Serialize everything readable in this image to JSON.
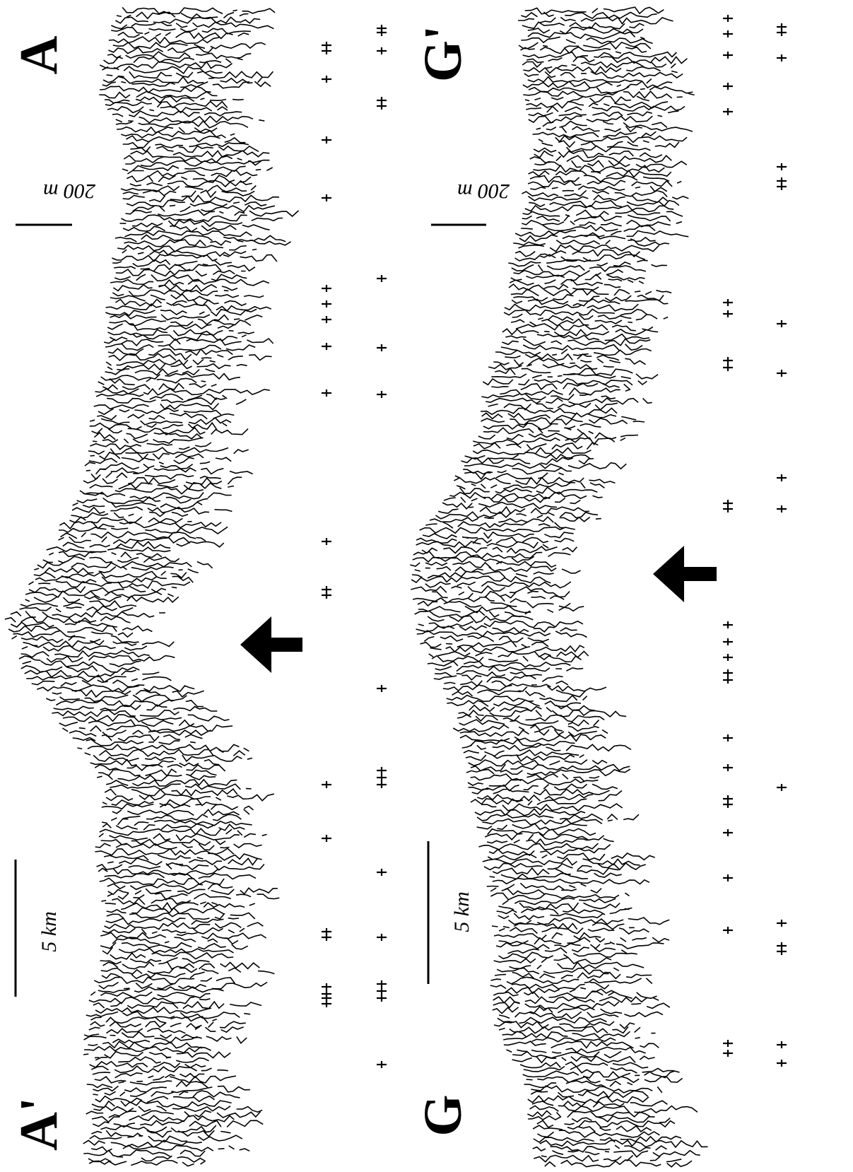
{
  "profiles": [
    {
      "id": "profile-a",
      "start_label": "A",
      "end_label": "A'",
      "vertical_scale": "200 m",
      "horizontal_scale": "5 km"
    },
    {
      "id": "profile-g",
      "start_label": "G'",
      "end_label": "G",
      "vertical_scale": "200 m",
      "horizontal_scale": "5 km"
    }
  ],
  "arrow_icon": "arrow-left-icon"
}
